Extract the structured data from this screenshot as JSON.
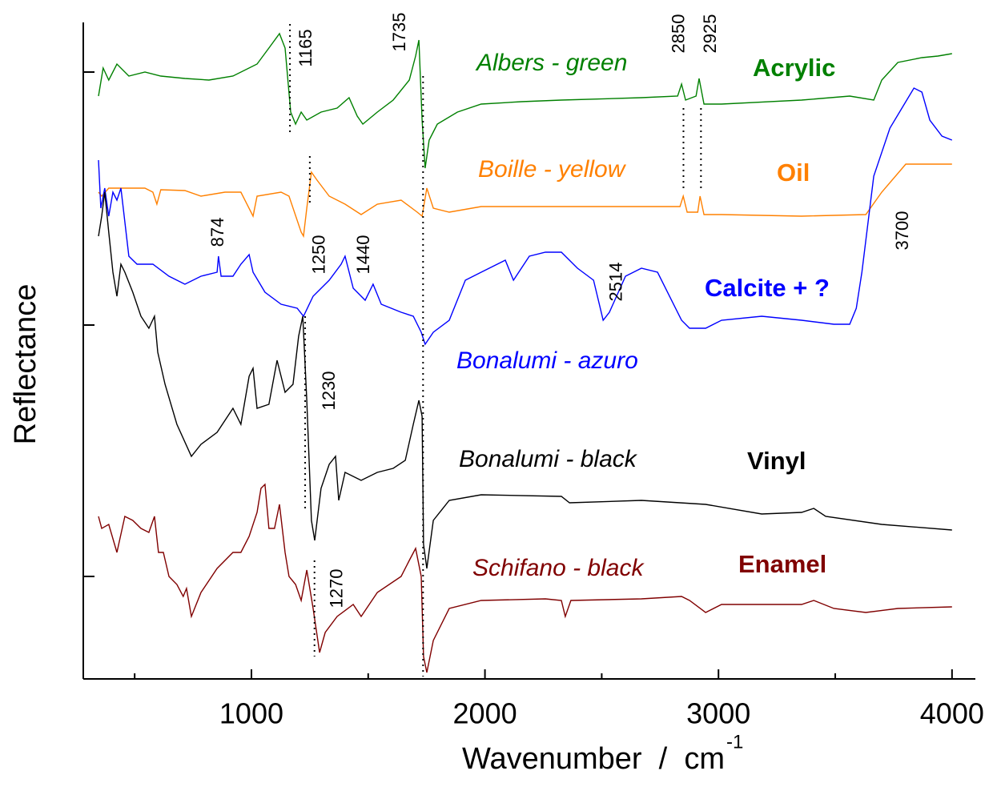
{
  "chart_data": {
    "type": "line",
    "xlabel": "Wavenumber  /  cm",
    "xlabel_sup": "-1",
    "ylabel": "Reflectance",
    "xlim": [
      280,
      4100
    ],
    "xticks": [
      1000,
      2000,
      3000,
      4000
    ],
    "minor_xticks": [
      500,
      1500,
      2500,
      3500
    ],
    "ylim": [
      0,
      818
    ],
    "y_tick_marks": [
      128,
      442,
      758
    ],
    "peaks": [
      1165,
      1735,
      2850,
      2925,
      874,
      1250,
      1440,
      2514,
      3700,
      1230,
      1270
    ],
    "series": [
      {
        "name": "Albers - green",
        "class": "Acrylic",
        "color": "#008000",
        "x": [
          345,
          365,
          389,
          424,
          475,
          544,
          612,
          715,
          818,
          921,
          1024,
          1075,
          1120,
          1144,
          1168,
          1189,
          1213,
          1237,
          1298,
          1367,
          1418,
          1453,
          1477,
          1539,
          1607,
          1676,
          1703,
          1717,
          1731,
          1744,
          1761,
          1796,
          1882,
          1984,
          2156,
          2327,
          2670,
          2825,
          2842,
          2859,
          2904,
          2917,
          2938,
          3013,
          3356,
          3562,
          3665,
          3699,
          3768,
          3871,
          3940,
          4000
        ],
        "values": [
          728,
          763,
          748,
          768,
          753,
          758,
          753,
          750,
          748,
          753,
          768,
          788,
          806,
          788,
          708,
          693,
          708,
          698,
          708,
          713,
          726,
          703,
          693,
          708,
          723,
          748,
          778,
          798,
          698,
          638,
          673,
          693,
          708,
          718,
          721,
          723,
          726,
          728,
          743,
          723,
          728,
          750,
          718,
          718,
          723,
          728,
          723,
          748,
          770,
          776,
          778,
          781
        ]
      },
      {
        "name": "Boille - yellow",
        "class": "Oil",
        "color": "#ff8000",
        "x": [
          345,
          359,
          389,
          441,
          544,
          578,
          595,
          612,
          715,
          784,
          887,
          955,
          1007,
          1024,
          1127,
          1161,
          1213,
          1223,
          1237,
          1257,
          1281,
          1333,
          1401,
          1470,
          1539,
          1641,
          1710,
          1731,
          1751,
          1779,
          1847,
          1984,
          2327,
          2670,
          2835,
          2849,
          2866,
          2911,
          2921,
          2938,
          3013,
          3356,
          3631,
          3699,
          3802,
          4000
        ],
        "values": [
          608,
          603,
          613,
          613,
          613,
          608,
          593,
          611,
          610,
          603,
          608,
          608,
          578,
          603,
          608,
          603,
          558,
          553,
          588,
          633,
          623,
          603,
          593,
          580,
          593,
          598,
          583,
          578,
          613,
          588,
          583,
          590,
          590,
          590,
          590,
          603,
          583,
          583,
          603,
          580,
          580,
          578,
          580,
          608,
          643,
          643
        ]
      },
      {
        "name": "Bonalumi - azuro",
        "class": "Calcite + ?",
        "color": "#0000ff",
        "x": [
          345,
          355,
          372,
          389,
          407,
          424,
          441,
          475,
          510,
          578,
          647,
          715,
          784,
          853,
          859,
          870,
          921,
          955,
          990,
          1007,
          1058,
          1127,
          1196,
          1223,
          1264,
          1333,
          1384,
          1401,
          1436,
          1487,
          1521,
          1556,
          1641,
          1693,
          1727,
          1744,
          1779,
          1847,
          1916,
          1984,
          2087,
          2122,
          2190,
          2259,
          2327,
          2396,
          2465,
          2506,
          2533,
          2602,
          2670,
          2739,
          2842,
          2876,
          2945,
          3013,
          3185,
          3356,
          3494,
          3562,
          3590,
          3614,
          3665,
          3734,
          3837,
          3871,
          3905,
          3957,
          4000
        ],
        "values": [
          648,
          588,
          613,
          578,
          608,
          598,
          613,
          528,
          518,
          518,
          503,
          493,
          503,
          508,
          528,
          503,
          503,
          518,
          530,
          508,
          483,
          468,
          463,
          453,
          478,
          498,
          518,
          528,
          488,
          473,
          493,
          468,
          458,
          453,
          433,
          418,
          433,
          448,
          498,
          508,
          523,
          498,
          528,
          533,
          533,
          513,
          498,
          448,
          458,
          503,
          513,
          508,
          448,
          438,
          438,
          448,
          453,
          448,
          443,
          443,
          463,
          508,
          628,
          688,
          738,
          733,
          698,
          678,
          673
        ]
      },
      {
        "name": "Bonalumi - black",
        "class": "Vinyl",
        "color": "#000000",
        "x": [
          345,
          359,
          372,
          389,
          407,
          424,
          441,
          458,
          492,
          527,
          561,
          585,
          599,
          630,
          681,
          743,
          784,
          853,
          921,
          955,
          990,
          1007,
          1024,
          1075,
          1110,
          1144,
          1178,
          1202,
          1220,
          1237,
          1257,
          1271,
          1298,
          1333,
          1360,
          1374,
          1401,
          1470,
          1539,
          1607,
          1659,
          1693,
          1717,
          1731,
          1737,
          1751,
          1779,
          1847,
          1984,
          2327,
          2362,
          2670,
          2945,
          3185,
          3356,
          3408,
          3459,
          3699,
          4000
        ],
        "values": [
          553,
          578,
          608,
          558,
          508,
          478,
          518,
          508,
          483,
          453,
          438,
          453,
          408,
          368,
          318,
          278,
          293,
          308,
          338,
          318,
          378,
          388,
          338,
          343,
          398,
          358,
          368,
          428,
          453,
          348,
          198,
          173,
          238,
          268,
          278,
          223,
          258,
          248,
          258,
          263,
          273,
          318,
          348,
          328,
          168,
          138,
          198,
          223,
          230,
          228,
          220,
          223,
          218,
          206,
          208,
          213,
          203,
          193,
          186
        ]
      },
      {
        "name": "Schifano - black",
        "class": "Enamel",
        "color": "#800000",
        "x": [
          345,
          359,
          389,
          424,
          458,
          492,
          527,
          561,
          585,
          602,
          623,
          647,
          681,
          708,
          722,
          743,
          784,
          853,
          921,
          955,
          990,
          1024,
          1041,
          1058,
          1075,
          1099,
          1120,
          1144,
          1161,
          1189,
          1213,
          1237,
          1264,
          1292,
          1316,
          1367,
          1436,
          1470,
          1539,
          1641,
          1676,
          1703,
          1727,
          1737,
          1751,
          1779,
          1847,
          1984,
          2259,
          2327,
          2344,
          2368,
          2670,
          2842,
          2876,
          2945,
          3013,
          3356,
          3408,
          3494,
          3631,
          3768,
          4000
        ],
        "values": [
          203,
          188,
          193,
          158,
          203,
          198,
          188,
          183,
          203,
          158,
          158,
          128,
          118,
          103,
          113,
          78,
          108,
          138,
          158,
          158,
          178,
          208,
          238,
          243,
          188,
          188,
          218,
          158,
          128,
          118,
          98,
          136,
          88,
          33,
          58,
          78,
          93,
          78,
          108,
          128,
          148,
          163,
          128,
          28,
          8,
          48,
          88,
          98,
          100,
          98,
          78,
          98,
          100,
          103,
          98,
          83,
          93,
          93,
          98,
          88,
          83,
          88,
          90
        ]
      }
    ]
  }
}
